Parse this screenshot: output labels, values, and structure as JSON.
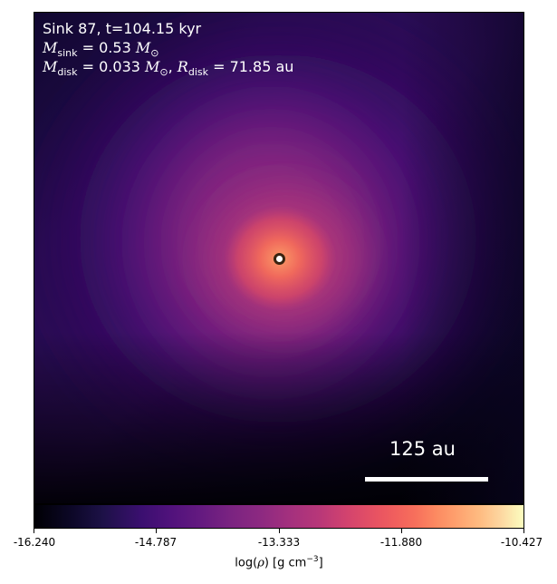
{
  "image": {
    "subject": "density projection around sink particle",
    "colormap": "inferno"
  },
  "annotation": {
    "sink_line": "Sink 87, t=104.15 kyr",
    "msink_symbol": "M",
    "msink_sub": "sink",
    "msink_value": "= 0.53",
    "msun_symbol": "M",
    "msun_sub": "⊙",
    "mdisk_symbol": "M",
    "mdisk_sub": "disk",
    "mdisk_value": "= 0.033",
    "rdisk_symbol": "R",
    "rdisk_sub": "disk",
    "rdisk_value": "= 71.85",
    "rdisk_unit": "au"
  },
  "scale_bar": {
    "label": "125 au"
  },
  "colorbar": {
    "label_prefix": "log(",
    "label_rho": "ρ",
    "label_mid": ") [g cm",
    "label_exp": "−3",
    "label_suffix": "]",
    "ticks": [
      "-16.240",
      "-14.787",
      "-13.333",
      "-11.880",
      "-10.427"
    ],
    "min": -16.24,
    "max": -10.427
  },
  "colors": {
    "sink_fill": "#ffffff",
    "sink_edge": "#3a2310",
    "text_overlay": "#ffffff"
  }
}
